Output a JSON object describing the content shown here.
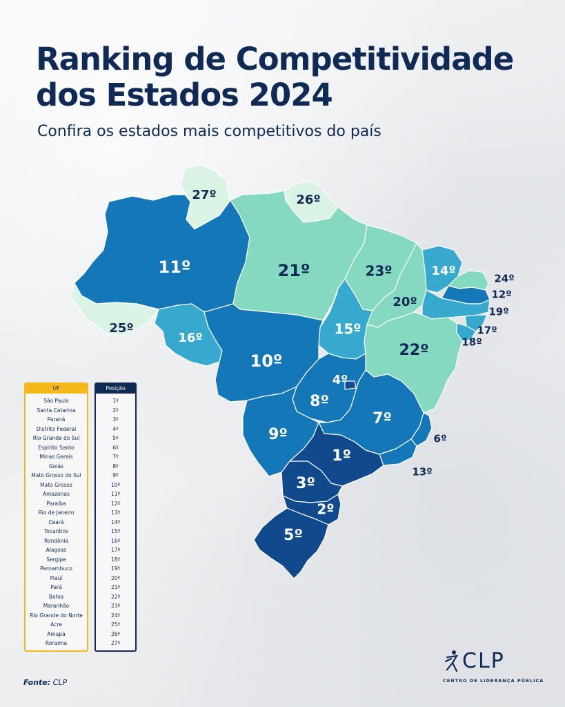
{
  "header": {
    "title": "Ranking de Competitividade dos Estados 2024",
    "subtitle": "Confira os estados mais competitivos do país"
  },
  "colors": {
    "navy": "#0f2a55",
    "rank_1_5": "#114a8c",
    "rank_6_13": "#1478b8",
    "rank_14_19": "#37a9cf",
    "rank_20_24": "#84d9c0",
    "rank_25_27": "#dbf3e4",
    "table_uf_accent": "#f4b81a"
  },
  "map": {
    "states": [
      {
        "uf": "RR",
        "rank": "27º"
      },
      {
        "uf": "AP",
        "rank": "26º"
      },
      {
        "uf": "AM",
        "rank": "11º"
      },
      {
        "uf": "PA",
        "rank": "21º"
      },
      {
        "uf": "MA",
        "rank": "23º"
      },
      {
        "uf": "CE",
        "rank": "14º"
      },
      {
        "uf": "RN",
        "rank": "24º"
      },
      {
        "uf": "PB",
        "rank": "12º"
      },
      {
        "uf": "PE",
        "rank": "19º"
      },
      {
        "uf": "AL",
        "rank": "17º"
      },
      {
        "uf": "SE",
        "rank": "18º"
      },
      {
        "uf": "PI",
        "rank": "20º"
      },
      {
        "uf": "AC",
        "rank": "25º"
      },
      {
        "uf": "RO",
        "rank": "16º"
      },
      {
        "uf": "TO",
        "rank": "15º"
      },
      {
        "uf": "BA",
        "rank": "22º"
      },
      {
        "uf": "MT",
        "rank": "10º"
      },
      {
        "uf": "DF",
        "rank": "4º"
      },
      {
        "uf": "GO",
        "rank": "8º"
      },
      {
        "uf": "MG",
        "rank": "7º"
      },
      {
        "uf": "MS",
        "rank": "9º"
      },
      {
        "uf": "ES",
        "rank": "6º"
      },
      {
        "uf": "SP",
        "rank": "1º"
      },
      {
        "uf": "RJ",
        "rank": "13º"
      },
      {
        "uf": "PR",
        "rank": "3º"
      },
      {
        "uf": "SC",
        "rank": "2º"
      },
      {
        "uf": "RS",
        "rank": "5º"
      }
    ]
  },
  "table": {
    "uf_header": "UF",
    "pos_header": "Posição",
    "rows": [
      {
        "state": "São Paulo",
        "pos": "1º"
      },
      {
        "state": "Santa Catarina",
        "pos": "2º"
      },
      {
        "state": "Paraná",
        "pos": "3º"
      },
      {
        "state": "Distrito Federal",
        "pos": "4º"
      },
      {
        "state": "Rio Grande do Sul",
        "pos": "5º"
      },
      {
        "state": "Espírito Santo",
        "pos": "6º"
      },
      {
        "state": "Minas Gerais",
        "pos": "7º"
      },
      {
        "state": "Goiás",
        "pos": "8º"
      },
      {
        "state": "Mato Grosso do Sul",
        "pos": "9º"
      },
      {
        "state": "Mato Grosso",
        "pos": "10º"
      },
      {
        "state": "Amazonas",
        "pos": "11º"
      },
      {
        "state": "Paraíba",
        "pos": "12º"
      },
      {
        "state": "Rio de Janeiro",
        "pos": "13º"
      },
      {
        "state": "Ceará",
        "pos": "14º"
      },
      {
        "state": "Tocantins",
        "pos": "15º"
      },
      {
        "state": "Rondônia",
        "pos": "16º"
      },
      {
        "state": "Alagoas",
        "pos": "17º"
      },
      {
        "state": "Sergipe",
        "pos": "18º"
      },
      {
        "state": "Pernambuco",
        "pos": "19º"
      },
      {
        "state": "Piauí",
        "pos": "20º"
      },
      {
        "state": "Pará",
        "pos": "21º"
      },
      {
        "state": "Bahia",
        "pos": "22º"
      },
      {
        "state": "Maranhão",
        "pos": "23º"
      },
      {
        "state": "Rio Grande do Norte",
        "pos": "24º"
      },
      {
        "state": "Acre",
        "pos": "25º"
      },
      {
        "state": "Amapá",
        "pos": "26º"
      },
      {
        "state": "Roraima",
        "pos": "27º"
      }
    ]
  },
  "footer": {
    "source_label": "Fonte:",
    "source_value": "CLP",
    "logo_text": "CLP",
    "logo_subtext": "CENTRO DE LIDERANÇA PÚBLICA"
  }
}
